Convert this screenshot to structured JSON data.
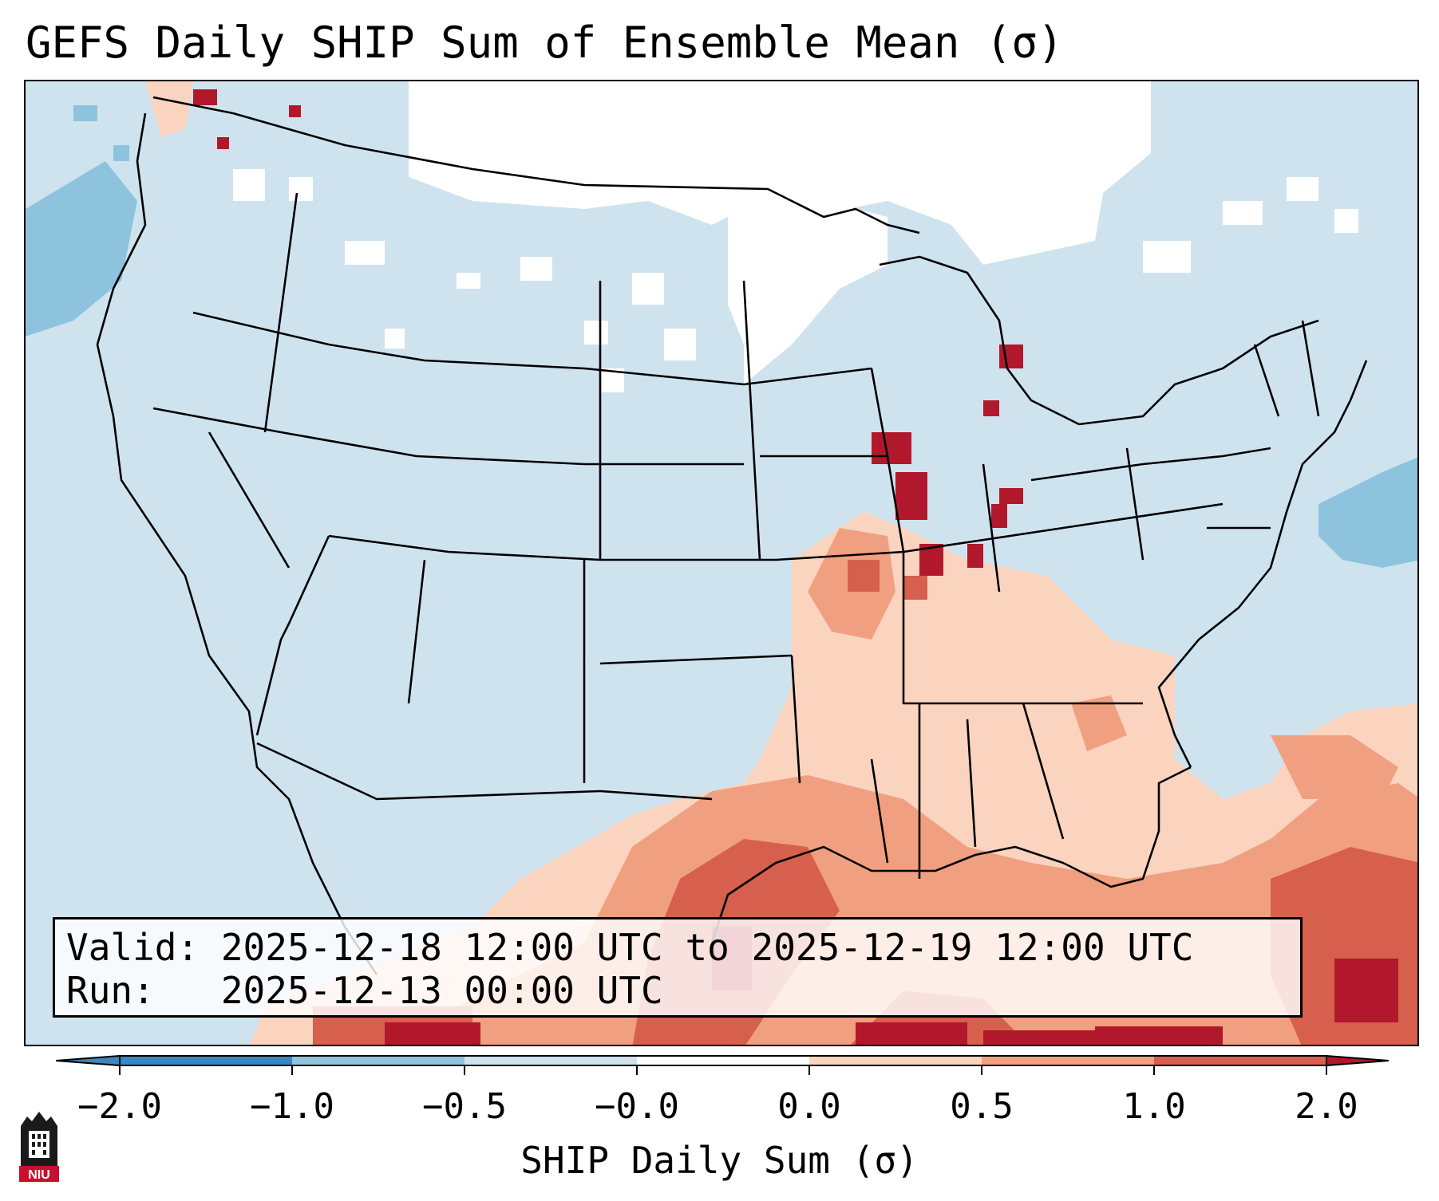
{
  "title": "GEFS Daily SHIP Sum of Ensemble Mean (σ)",
  "info": {
    "valid_line": "Valid: 2025-12-18 12:00 UTC to 2025-12-19 12:00 UTC",
    "run_line": "Run:   2025-12-13 00:00 UTC"
  },
  "colorbar": {
    "label": "SHIP Daily Sum (σ)",
    "ticks": [
      "−2.0",
      "−1.0",
      "−0.5",
      "−0.0",
      "0.0",
      "0.5",
      "1.0",
      "2.0"
    ],
    "colors": [
      "#3a86c0",
      "#8dc3dd",
      "#cfe3ef",
      "#ffffff",
      "#fbd4bf",
      "#f0a080",
      "#d6604d",
      "#b2182b"
    ]
  },
  "map": {
    "background_color": "#cfe3ef",
    "region": "Contiguous United States",
    "positive_anomaly_areas": [
      "Gulf of Mexico",
      "Southeast US",
      "Ohio Valley",
      "Bahamas",
      "Pacific Northwest"
    ]
  },
  "logo_text": "NIU"
}
